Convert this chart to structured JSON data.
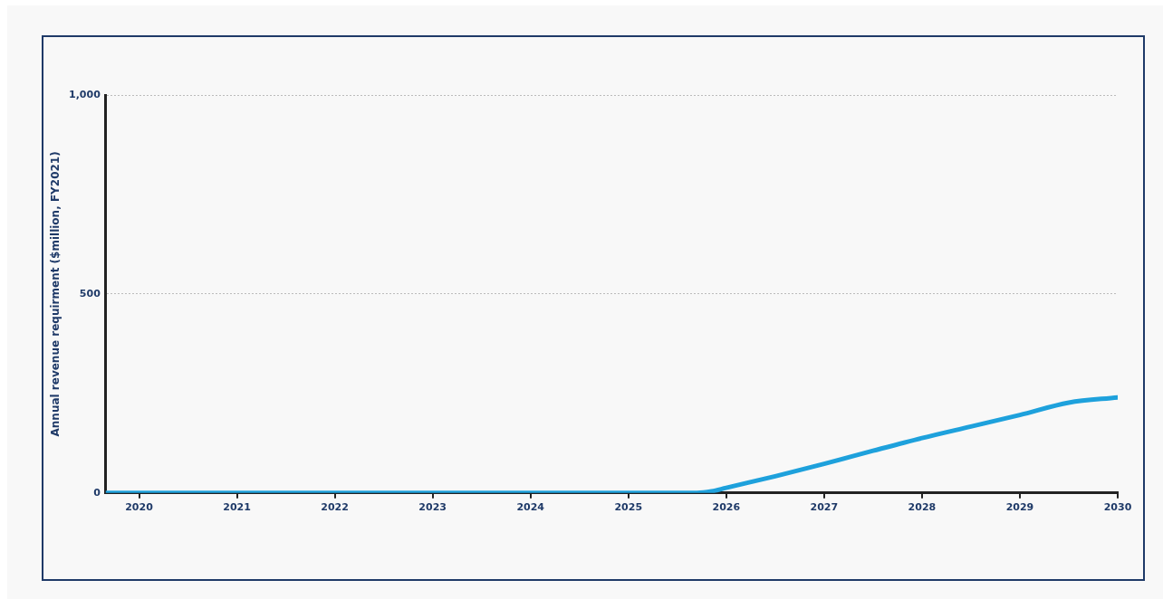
{
  "chart_data": {
    "type": "line",
    "ylabel": "Annual revenue requirment ($million, FY2021)",
    "series": [
      {
        "color": "#1ea1dc",
        "x": [
          2019.66,
          2020,
          2021,
          2022,
          2023,
          2024,
          2025,
          2025.7,
          2025.85,
          2026,
          2026.5,
          2027,
          2027.5,
          2028,
          2028.5,
          2029,
          2029.5,
          2030
        ],
        "values": [
          0,
          0,
          0,
          0,
          0,
          0,
          0,
          0,
          4,
          13,
          42,
          73,
          106,
          138,
          167,
          196,
          227,
          240
        ]
      }
    ],
    "xlim": [
      2019.66,
      2030
    ],
    "xticks": [
      2020,
      2021,
      2022,
      2023,
      2024,
      2025,
      2026,
      2027,
      2028,
      2029,
      2030
    ],
    "ylim": [
      0,
      1000
    ],
    "yticks": [
      0,
      {
        "value": 500,
        "label": "500"
      },
      {
        "value": 1000,
        "label": "1,000"
      }
    ],
    "grid": "y",
    "legend": false,
    "marker": "none",
    "line_style": "solid"
  }
}
